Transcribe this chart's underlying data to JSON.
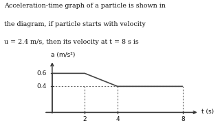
{
  "title_lines": [
    "Acceleration-time graph of a particle is shown in",
    "the diagram, if particle starts with velocity",
    "u = 2.4 m/s, then its velocity at t = 8 s is"
  ],
  "line_color": "#444444",
  "dashed_color": "#666666",
  "background_color": "#ffffff",
  "xlabel": "t (s)",
  "ylabel": "a (m/s²)",
  "xticks": [
    2,
    4,
    8
  ],
  "yticks": [
    0.4,
    0.6
  ],
  "xlim": [
    -0.5,
    9.2
  ],
  "ylim": [
    -0.05,
    0.82
  ],
  "title_fontsize": 6.8,
  "axis_label_fontsize": 6.5,
  "tick_fontsize": 6.5
}
